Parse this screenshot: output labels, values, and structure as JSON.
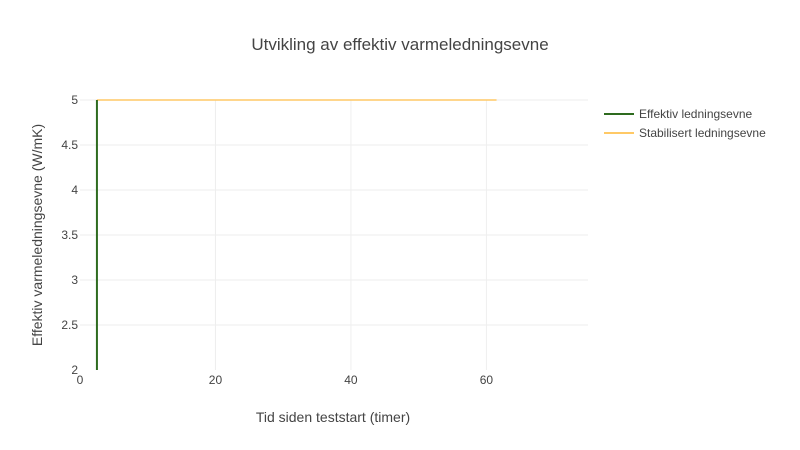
{
  "chart_data": {
    "type": "line",
    "title": "Utvikling av effektiv varmeledningsevne",
    "xlabel": "Tid siden teststart (timer)",
    "ylabel": "Effektiv varmeledningsevne (W/mK)",
    "xlim": [
      0,
      75
    ],
    "ylim": [
      2,
      5
    ],
    "x_ticks": [
      0,
      20,
      40,
      60
    ],
    "y_ticks": [
      2,
      2.5,
      3,
      3.5,
      4,
      4.5,
      5
    ],
    "x_tick_labels": [
      "0",
      "20",
      "40",
      "60"
    ],
    "y_tick_labels": [
      "2",
      "2.5",
      "3",
      "3.5",
      "4",
      "4.5",
      "5"
    ],
    "grid": true,
    "legend_position": "top-right",
    "series": [
      {
        "name": "Effektiv ledningsevne",
        "color": "#2e6b1f",
        "x": [
          2.5,
          2.5
        ],
        "y": [
          2,
          5
        ]
      },
      {
        "name": "Stabilisert ledningsevne",
        "color": "#ffc966",
        "x": [
          2.5,
          61.5
        ],
        "y": [
          5,
          5
        ]
      }
    ]
  }
}
